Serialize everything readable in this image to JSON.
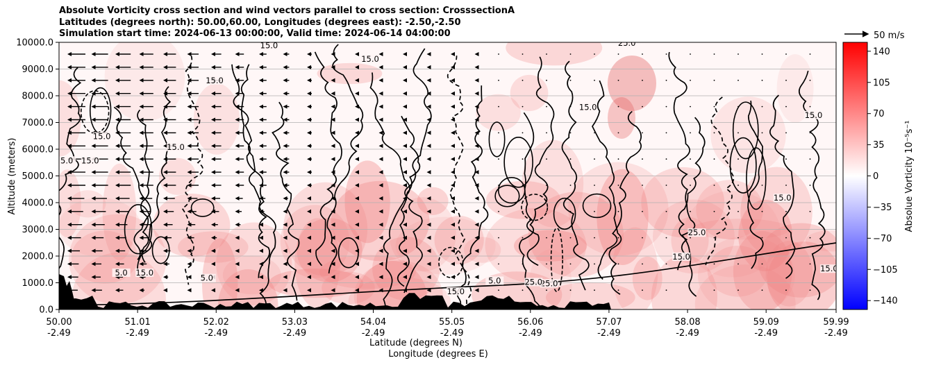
{
  "chart_data": {
    "type": "heatmap",
    "title_lines": [
      "Absolute Vorticity cross section and wind vectors parallel to cross section: CrosssectionA",
      "Latitudes (degrees north): 50.00,60.00, Longitudes (degrees east): -2.50,-2.50",
      "Simulation start time: 2024-06-13 00:00:00, Valid time: 2024-06-14 04:00:00"
    ],
    "ylabel": "Altitude (meters)",
    "xlabel_line1": "Latitude (degrees N)",
    "xlabel_line2": "Longitude (degrees E)",
    "ylim": [
      0,
      10000
    ],
    "xlim": [
      50.0,
      59.99
    ],
    "y_ticks": [
      {
        "value": 0,
        "label": "0.0"
      },
      {
        "value": 1000,
        "label": "1000.0"
      },
      {
        "value": 2000,
        "label": "2000.0"
      },
      {
        "value": 3000,
        "label": "3000.0"
      },
      {
        "value": 4000,
        "label": "4000.0"
      },
      {
        "value": 5000,
        "label": "5000.0"
      },
      {
        "value": 6000,
        "label": "6000.0"
      },
      {
        "value": 7000,
        "label": "7000.0"
      },
      {
        "value": 8000,
        "label": "8000.0"
      },
      {
        "value": 9000,
        "label": "9000.0"
      },
      {
        "value": 10000,
        "label": "10000.0"
      }
    ],
    "x_ticks": [
      {
        "value": 50.0,
        "lat": "50.00",
        "lon": "-2.49"
      },
      {
        "value": 51.01,
        "lat": "51.01",
        "lon": "-2.49"
      },
      {
        "value": 52.02,
        "lat": "52.02",
        "lon": "-2.49"
      },
      {
        "value": 53.03,
        "lat": "53.03",
        "lon": "-2.49"
      },
      {
        "value": 54.04,
        "lat": "54.04",
        "lon": "-2.49"
      },
      {
        "value": 55.05,
        "lat": "55.05",
        "lon": "-2.49"
      },
      {
        "value": 56.06,
        "lat": "56.06",
        "lon": "-2.49"
      },
      {
        "value": 57.07,
        "lat": "57.07",
        "lon": "-2.49"
      },
      {
        "value": 58.08,
        "lat": "58.08",
        "lon": "-2.49"
      },
      {
        "value": 59.09,
        "lat": "59.09",
        "lon": "-2.49"
      },
      {
        "value": 59.99,
        "lat": "59.99",
        "lon": "-2.49"
      }
    ],
    "colorbar": {
      "label": "Absolue Vorticity 10⁻⁵s⁻¹",
      "range": [
        -150,
        150
      ],
      "ticks": [
        {
          "value": 140,
          "label": "140"
        },
        {
          "value": 105,
          "label": "105"
        },
        {
          "value": 70,
          "label": "70"
        },
        {
          "value": 35,
          "label": "35"
        },
        {
          "value": 0,
          "label": "0"
        },
        {
          "value": -35,
          "label": "−35"
        },
        {
          "value": -70,
          "label": "−70"
        },
        {
          "value": -105,
          "label": "−105"
        },
        {
          "value": -140,
          "label": "−140"
        }
      ],
      "colors": {
        "negative": "#0000ff",
        "zero": "#ffffff",
        "positive": "#ff0000"
      }
    },
    "quiver_key": {
      "label": "50 m/s",
      "value": 50
    },
    "contour_labels": [
      {
        "text": "15.0",
        "lat": 52.7,
        "alt": 9800
      },
      {
        "text": "15.0",
        "lat": 54.0,
        "alt": 9300
      },
      {
        "text": "15.0",
        "lat": 52.0,
        "alt": 8500
      },
      {
        "text": "15.0",
        "lat": 50.55,
        "alt": 6400
      },
      {
        "text": "15.0",
        "lat": 51.5,
        "alt": 6000
      },
      {
        "text": "5.0",
        "lat": 50.1,
        "alt": 5500
      },
      {
        "text": "15.0",
        "lat": 50.4,
        "alt": 5500
      },
      {
        "text": "15.0",
        "lat": 58.0,
        "alt": 1900
      },
      {
        "text": "25.0",
        "lat": 56.3,
        "alt": 900
      },
      {
        "text": "15.0",
        "lat": 59.9,
        "alt": 1450
      },
      {
        "text": "25.0",
        "lat": 58.2,
        "alt": 2800
      },
      {
        "text": "15.0",
        "lat": 59.7,
        "alt": 7200
      },
      {
        "text": "25.0",
        "lat": 57.3,
        "alt": 9900
      },
      {
        "text": "15.0",
        "lat": 59.3,
        "alt": 4100
      },
      {
        "text": "15.0",
        "lat": 51.1,
        "alt": 1300
      },
      {
        "text": "5.0",
        "lat": 50.8,
        "alt": 1300
      },
      {
        "text": "5.0",
        "lat": 55.6,
        "alt": 1000
      },
      {
        "text": "25.0",
        "lat": 56.1,
        "alt": 950
      },
      {
        "text": "15.0",
        "lat": 55.1,
        "alt": 600
      },
      {
        "text": "5.0",
        "lat": 51.9,
        "alt": 1100
      },
      {
        "text": "15.0",
        "lat": 56.8,
        "alt": 7500
      }
    ],
    "notes": "Positive absolute vorticity field (mostly 0-35 x1e-5 s^-1) with black contours at 5, 15, 25, 35 (dashed where negative), westward wind vectors upper-left, terrain filled black near 0 m."
  }
}
